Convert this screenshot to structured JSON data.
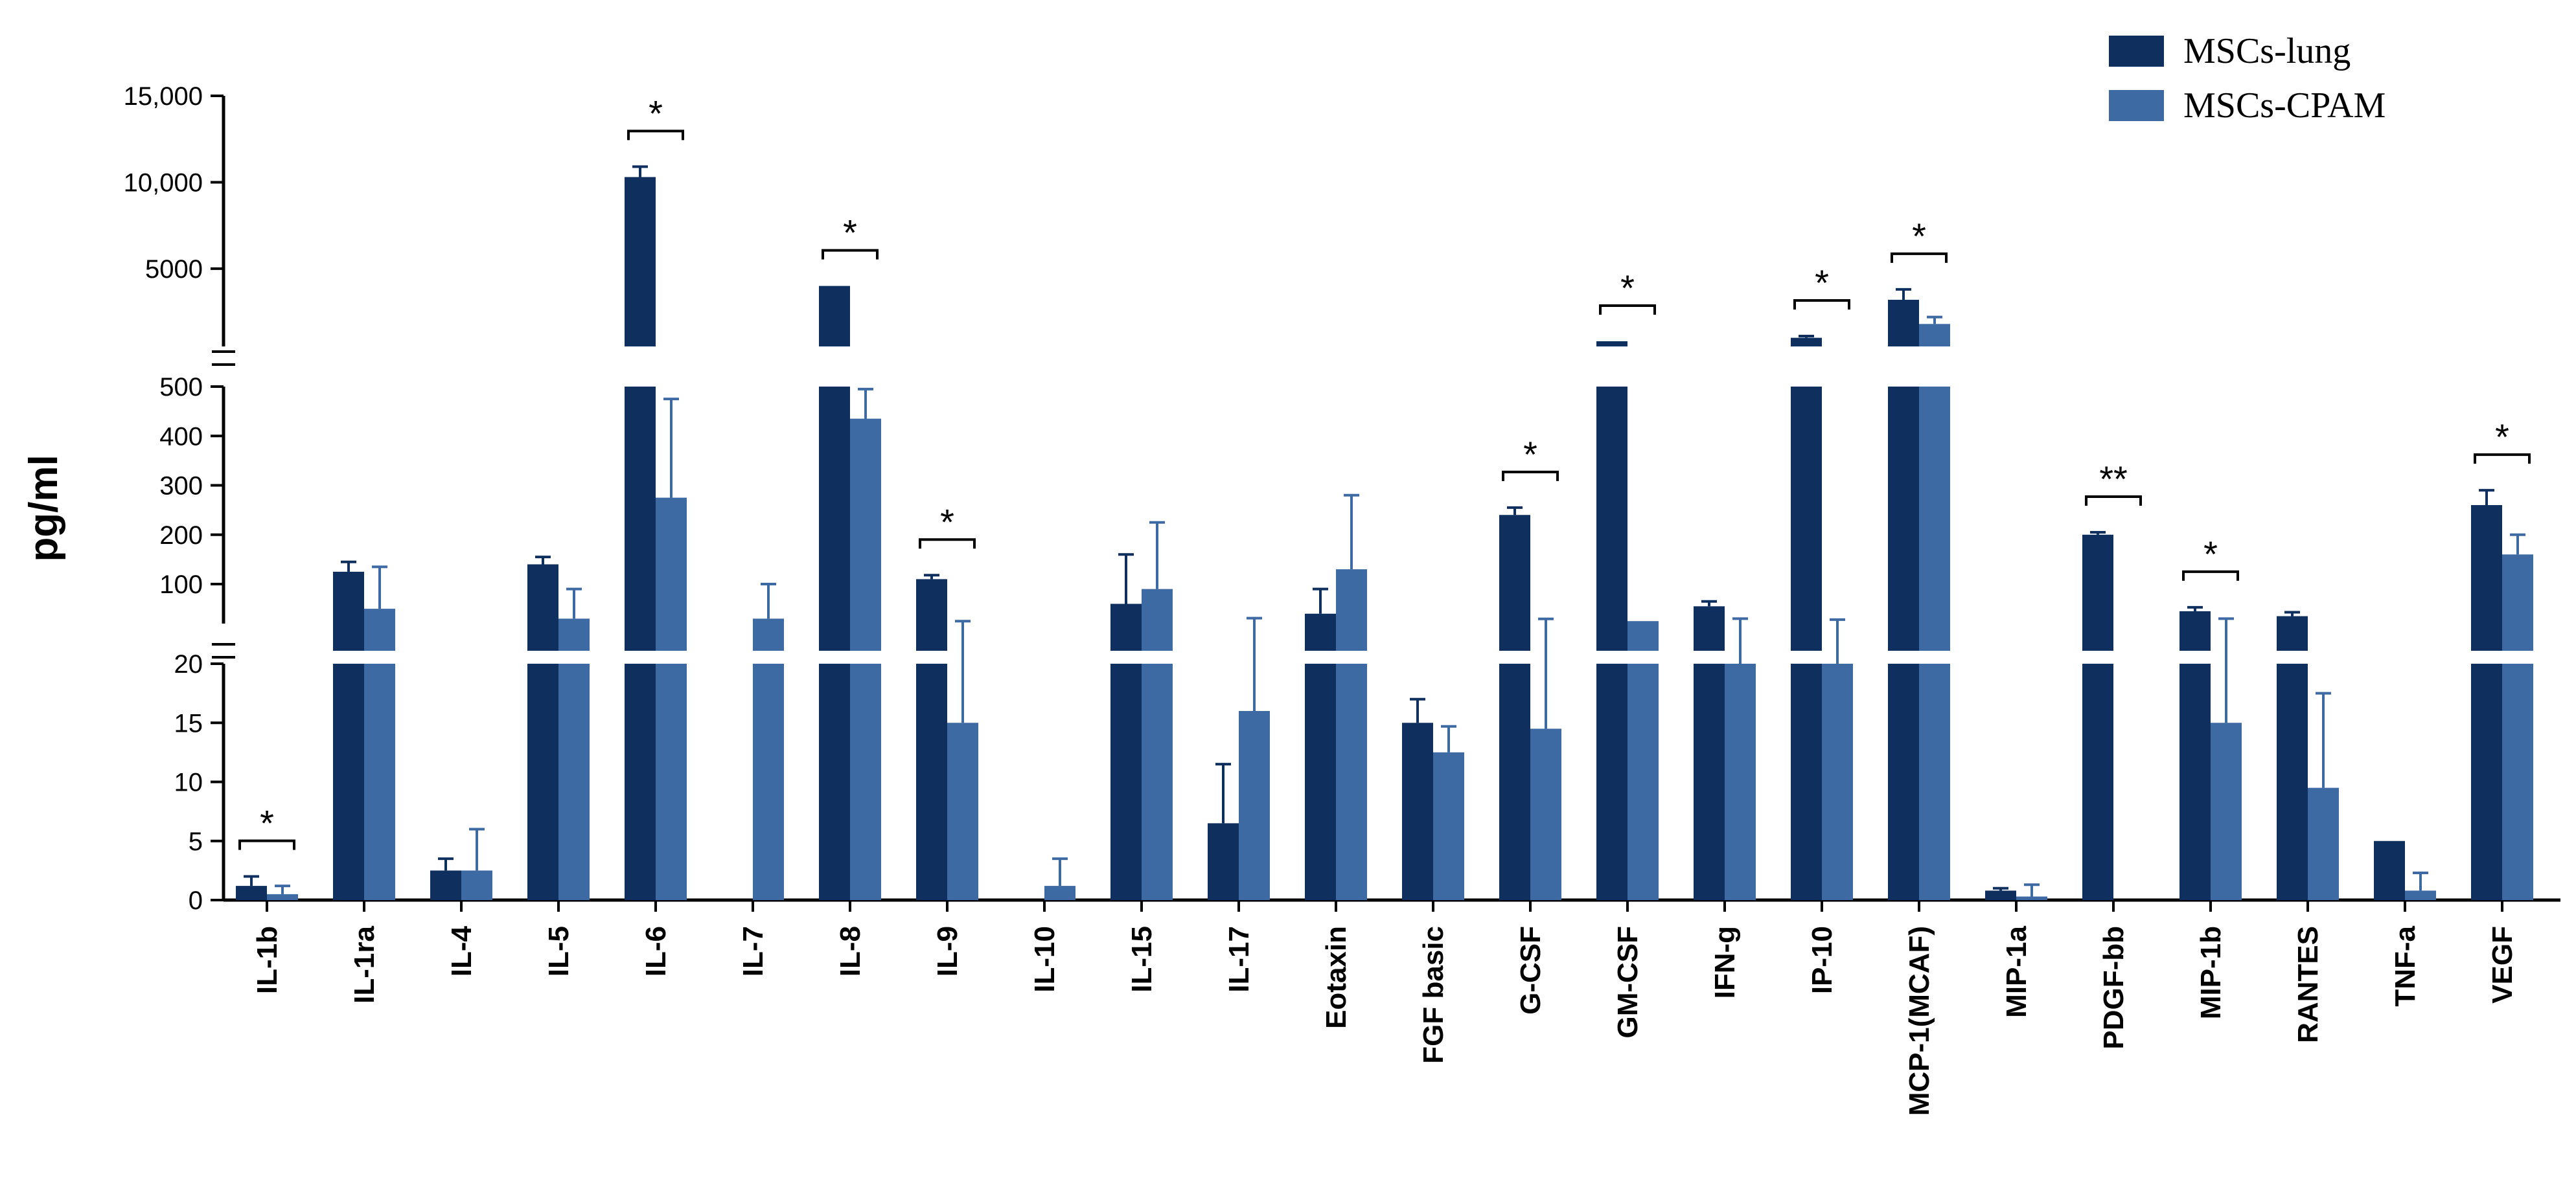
{
  "chart_data": {
    "type": "bar",
    "title": "",
    "xlabel": "",
    "ylabel": "pg/ml",
    "colors": {
      "MSCs-lung": "#0f2f5f",
      "MSCs-CPAM": "#3d6aa3"
    },
    "legend_position": "top-right",
    "grid": false,
    "y_axis_segments": [
      {
        "range": [
          0,
          20
        ],
        "ticks": [
          0,
          5,
          10,
          15,
          20
        ],
        "tick_labels": [
          "0",
          "5",
          "10",
          "15",
          "20"
        ]
      },
      {
        "range": [
          20,
          500
        ],
        "ticks": [
          100,
          200,
          300,
          400,
          500
        ],
        "tick_labels": [
          "100",
          "200",
          "300",
          "400",
          "500"
        ]
      },
      {
        "range": [
          500,
          15000
        ],
        "ticks": [
          5000,
          10000,
          15000
        ],
        "tick_labels": [
          "5000",
          "10,000",
          "15,000"
        ]
      }
    ],
    "categories": [
      "IL-1b",
      "IL-1ra",
      "IL-4",
      "IL-5",
      "IL-6",
      "IL-7",
      "IL-8",
      "IL-9",
      "IL-10",
      "IL-15",
      "IL-17",
      "Eotaxin",
      "FGF basic",
      "G-CSF",
      "GM-CSF",
      "IFN-g",
      "IP-10",
      "MCP-1(MCAF)",
      "MIP-1a",
      "PDGF-bb",
      "MIP-1b",
      "RANTES",
      "TNF-a",
      "VEGF"
    ],
    "series": [
      {
        "name": "MSCs-lung",
        "values": [
          1.2,
          125,
          2.5,
          140,
          10300,
          0,
          4000,
          110,
          0,
          60,
          6.5,
          40,
          15,
          240,
          800,
          55,
          1000,
          3200,
          0.8,
          200,
          45,
          35,
          5,
          260
        ],
        "errors": [
          0.8,
          20,
          1,
          15,
          600,
          0,
          0,
          8,
          0,
          100,
          5,
          50,
          2,
          15,
          0,
          10,
          100,
          600,
          0.2,
          5,
          8,
          8,
          0,
          30
        ]
      },
      {
        "name": "MSCs-CPAM",
        "values": [
          0.5,
          50,
          2.5,
          30,
          275,
          30,
          435,
          15,
          1.2,
          90,
          16,
          130,
          12.5,
          14.5,
          25,
          20,
          20,
          1800,
          0.3,
          0,
          15,
          9.5,
          0.8,
          160
        ],
        "errors": [
          0.7,
          85,
          3.5,
          60,
          200,
          70,
          60,
          10,
          2.3,
          135,
          15,
          150,
          2.2,
          15,
          0,
          10,
          8,
          400,
          1,
          0,
          15,
          8,
          1.5,
          40
        ]
      }
    ],
    "significance": [
      {
        "category": "IL-1b",
        "label": "*"
      },
      {
        "category": "IL-6",
        "label": "*"
      },
      {
        "category": "IL-8",
        "label": "*"
      },
      {
        "category": "IL-9",
        "label": "*"
      },
      {
        "category": "G-CSF",
        "label": "*"
      },
      {
        "category": "GM-CSF",
        "label": "*"
      },
      {
        "category": "IP-10",
        "label": "*"
      },
      {
        "category": "MCP-1(MCAF)",
        "label": "*"
      },
      {
        "category": "PDGF-bb",
        "label": "**"
      },
      {
        "category": "MIP-1b",
        "label": "*"
      },
      {
        "category": "VEGF",
        "label": "*"
      }
    ]
  }
}
